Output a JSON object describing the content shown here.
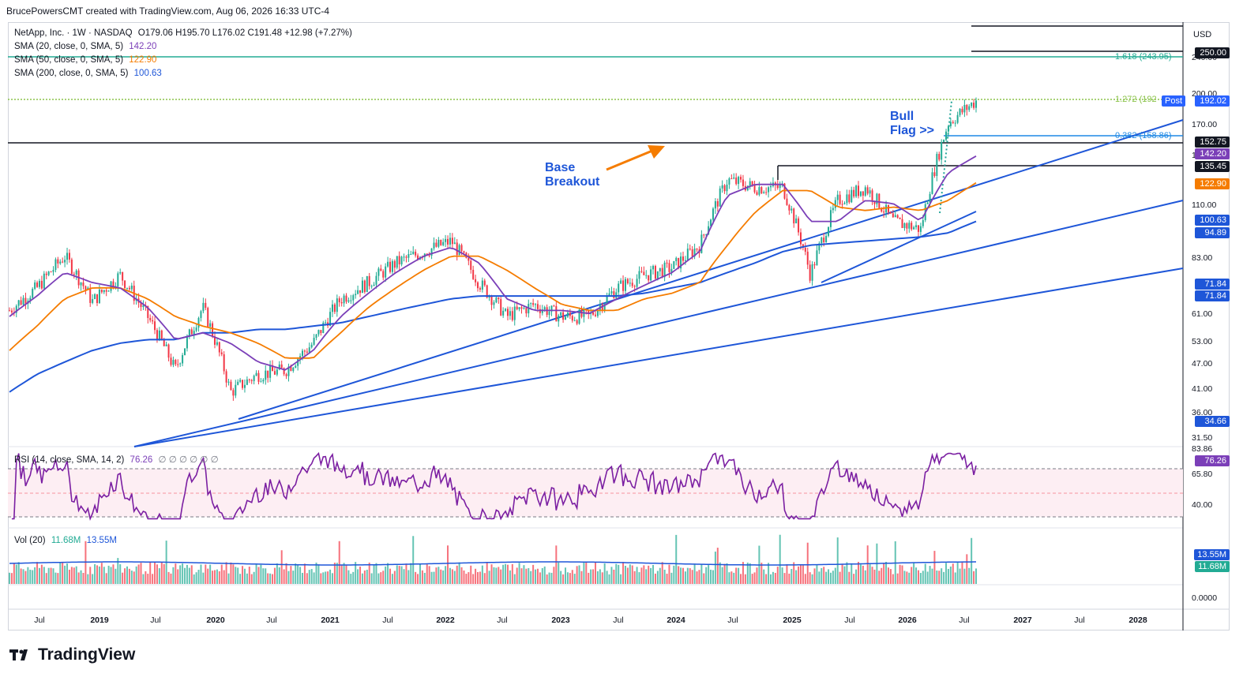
{
  "header": {
    "attribution": "BrucePowersCMT created with TradingView.com, Aug 06, 2026 16:33 UTC-4"
  },
  "legend": {
    "symbol": "NetApp, Inc. · 1W · NASDAQ",
    "ohlc": "O179.06 H195.70 L176.02 C191.48 +12.98 (+7.27%)",
    "sma20_label": "SMA (20, close, 0, SMA, 5)",
    "sma20_value": "142.20",
    "sma50_label": "SMA (50, close, 0, SMA, 5)",
    "sma50_value": "122.90",
    "sma200_label": "SMA (200, close, 0, SMA, 5)",
    "sma200_value": "100.63",
    "rsi_label": "RSI (14, close, SMA, 14, 2)",
    "rsi_value": "76.26",
    "rsi_extra": "∅ ∅ ∅ ∅ ∅ ∅",
    "vol_label": "Vol (20)",
    "vol_value1": "11.68M",
    "vol_value2": "13.55M"
  },
  "annotations": {
    "base_breakout_line1": "Base",
    "base_breakout_line2": "Breakout",
    "bull_flag_line1": "Bull",
    "bull_flag_line2": "Flag >>"
  },
  "fib": {
    "f1618": "1.618 (243.95)",
    "f1272": "1.272 (192",
    "f0382": "0.382 (158.86)"
  },
  "price_axis": {
    "currency": "USD",
    "labels": [
      "240.00",
      "200.00",
      "170.00",
      "150.00",
      "110.00",
      "83.00",
      "61.00",
      "53.00",
      "47.00",
      "41.00",
      "36.00",
      "31.50"
    ],
    "rsi_labels": [
      "83.86",
      "65.80",
      "40.00"
    ],
    "vol_labels": [
      "0.0000"
    ],
    "post_label": "Post"
  },
  "price_tags": [
    {
      "text": "250.00",
      "color": "#131722"
    },
    {
      "text": "192.02",
      "color": "#2962ff"
    },
    {
      "text": "152.75",
      "color": "#131722"
    },
    {
      "text": "142.20",
      "color": "#7b3fb8"
    },
    {
      "text": "135.45",
      "color": "#131722"
    },
    {
      "text": "122.90",
      "color": "#f57c00"
    },
    {
      "text": "100.63",
      "color": "#1e56d8"
    },
    {
      "text": "94.89",
      "color": "#1e56d8"
    },
    {
      "text": "71.84",
      "color": "#1e56d8"
    },
    {
      "text": "71.84",
      "color": "#1e56d8"
    },
    {
      "text": "34.66",
      "color": "#1e56d8"
    },
    {
      "text": "76.26",
      "color": "#7b3fb8"
    },
    {
      "text": "13.55M",
      "color": "#1e56d8"
    },
    {
      "text": "11.68M",
      "color": "#22ab94"
    }
  ],
  "time_axis": {
    "labels": [
      "Jul",
      "2019",
      "Jul",
      "2020",
      "Jul",
      "2021",
      "Jul",
      "2022",
      "Jul",
      "2023",
      "Jul",
      "2024",
      "Jul",
      "2025",
      "Jul",
      "2026",
      "Jul",
      "2027",
      "Jul",
      "2028"
    ]
  },
  "branding": {
    "logo_text": "TradingView"
  },
  "colors": {
    "up": "#22ab94",
    "down": "#f23645",
    "sma20": "#7b3fb8",
    "sma50": "#f57c00",
    "sma200": "#1e56d8",
    "trendline": "#1e56d8",
    "fib1618": "#22ab94",
    "fib1272": "#8bc34a",
    "rsi": "#7b1fa2"
  },
  "chart_data": {
    "type": "line",
    "title": "NetApp, Inc. · 1W · NASDAQ",
    "x": [
      "2018-05",
      "2018-07",
      "2018-10",
      "2019-01",
      "2019-04",
      "2019-07",
      "2019-10",
      "2020-01",
      "2020-03",
      "2020-05",
      "2020-07",
      "2020-10",
      "2021-01",
      "2021-04",
      "2021-07",
      "2021-10",
      "2022-01",
      "2022-04",
      "2022-07",
      "2022-10",
      "2023-01",
      "2023-04",
      "2023-07",
      "2023-10",
      "2024-01",
      "2024-04",
      "2024-07",
      "2024-10",
      "2025-01",
      "2025-04",
      "2025-07",
      "2025-10",
      "2026-01",
      "2026-04",
      "2026-06",
      "2026-08"
    ],
    "series": [
      {
        "name": "NetApp",
        "values": [
          62,
          70,
          83,
          65,
          75,
          60,
          45,
          63,
          40,
          44,
          45,
          52,
          66,
          72,
          80,
          85,
          90,
          72,
          60,
          64,
          60,
          60,
          70,
          75,
          78,
          88,
          125,
          120,
          120,
          75,
          112,
          120,
          100,
          96,
          170,
          191
        ]
      },
      {
        "name": "SMA (20, close, 0, SMA, 5)",
        "values": [
          60,
          67,
          76,
          72,
          70,
          63,
          53,
          55,
          52,
          47,
          45,
          50,
          60,
          68,
          76,
          83,
          87,
          80,
          66,
          62,
          62,
          61,
          66,
          71,
          76,
          85,
          115,
          122,
          122,
          100,
          100,
          112,
          110,
          100,
          130,
          142
        ]
      },
      {
        "name": "SMA (50, close, 0, SMA, 5)",
        "values": [
          50,
          57,
          66,
          70,
          70,
          66,
          60,
          57,
          55,
          52,
          48,
          48,
          55,
          63,
          70,
          77,
          83,
          83,
          77,
          70,
          64,
          62,
          62,
          66,
          68,
          72,
          88,
          105,
          118,
          118,
          108,
          106,
          108,
          106,
          112,
          123
        ]
      },
      {
        "name": "SMA (200, close, 0, SMA, 5)",
        "values": [
          40,
          44,
          47,
          50,
          52,
          53,
          53,
          55,
          55,
          56,
          56,
          57,
          58,
          60,
          62,
          64,
          66,
          67,
          67,
          67,
          67,
          67,
          67,
          68,
          70,
          72,
          76,
          80,
          85,
          88,
          89,
          90,
          91,
          92,
          94,
          100
        ]
      }
    ],
    "rsi": {
      "name": "RSI (14, close, SMA, 14, 2)",
      "last": 76.26,
      "levels": [
        70,
        50,
        30
      ]
    },
    "volume": {
      "name": "Vol (20)",
      "last": "11.68M",
      "sma": "13.55M"
    },
    "fibonacci": [
      {
        "level": "1.618",
        "price": 243.95
      },
      {
        "level": "1.272",
        "price": 192
      },
      {
        "level": "0.382",
        "price": 158.86
      }
    ],
    "horizontal_levels": [
      152.75,
      135.45,
      250.0
    ],
    "ylim": [
      31.5,
      260
    ],
    "log_scale": true,
    "grid": false
  }
}
